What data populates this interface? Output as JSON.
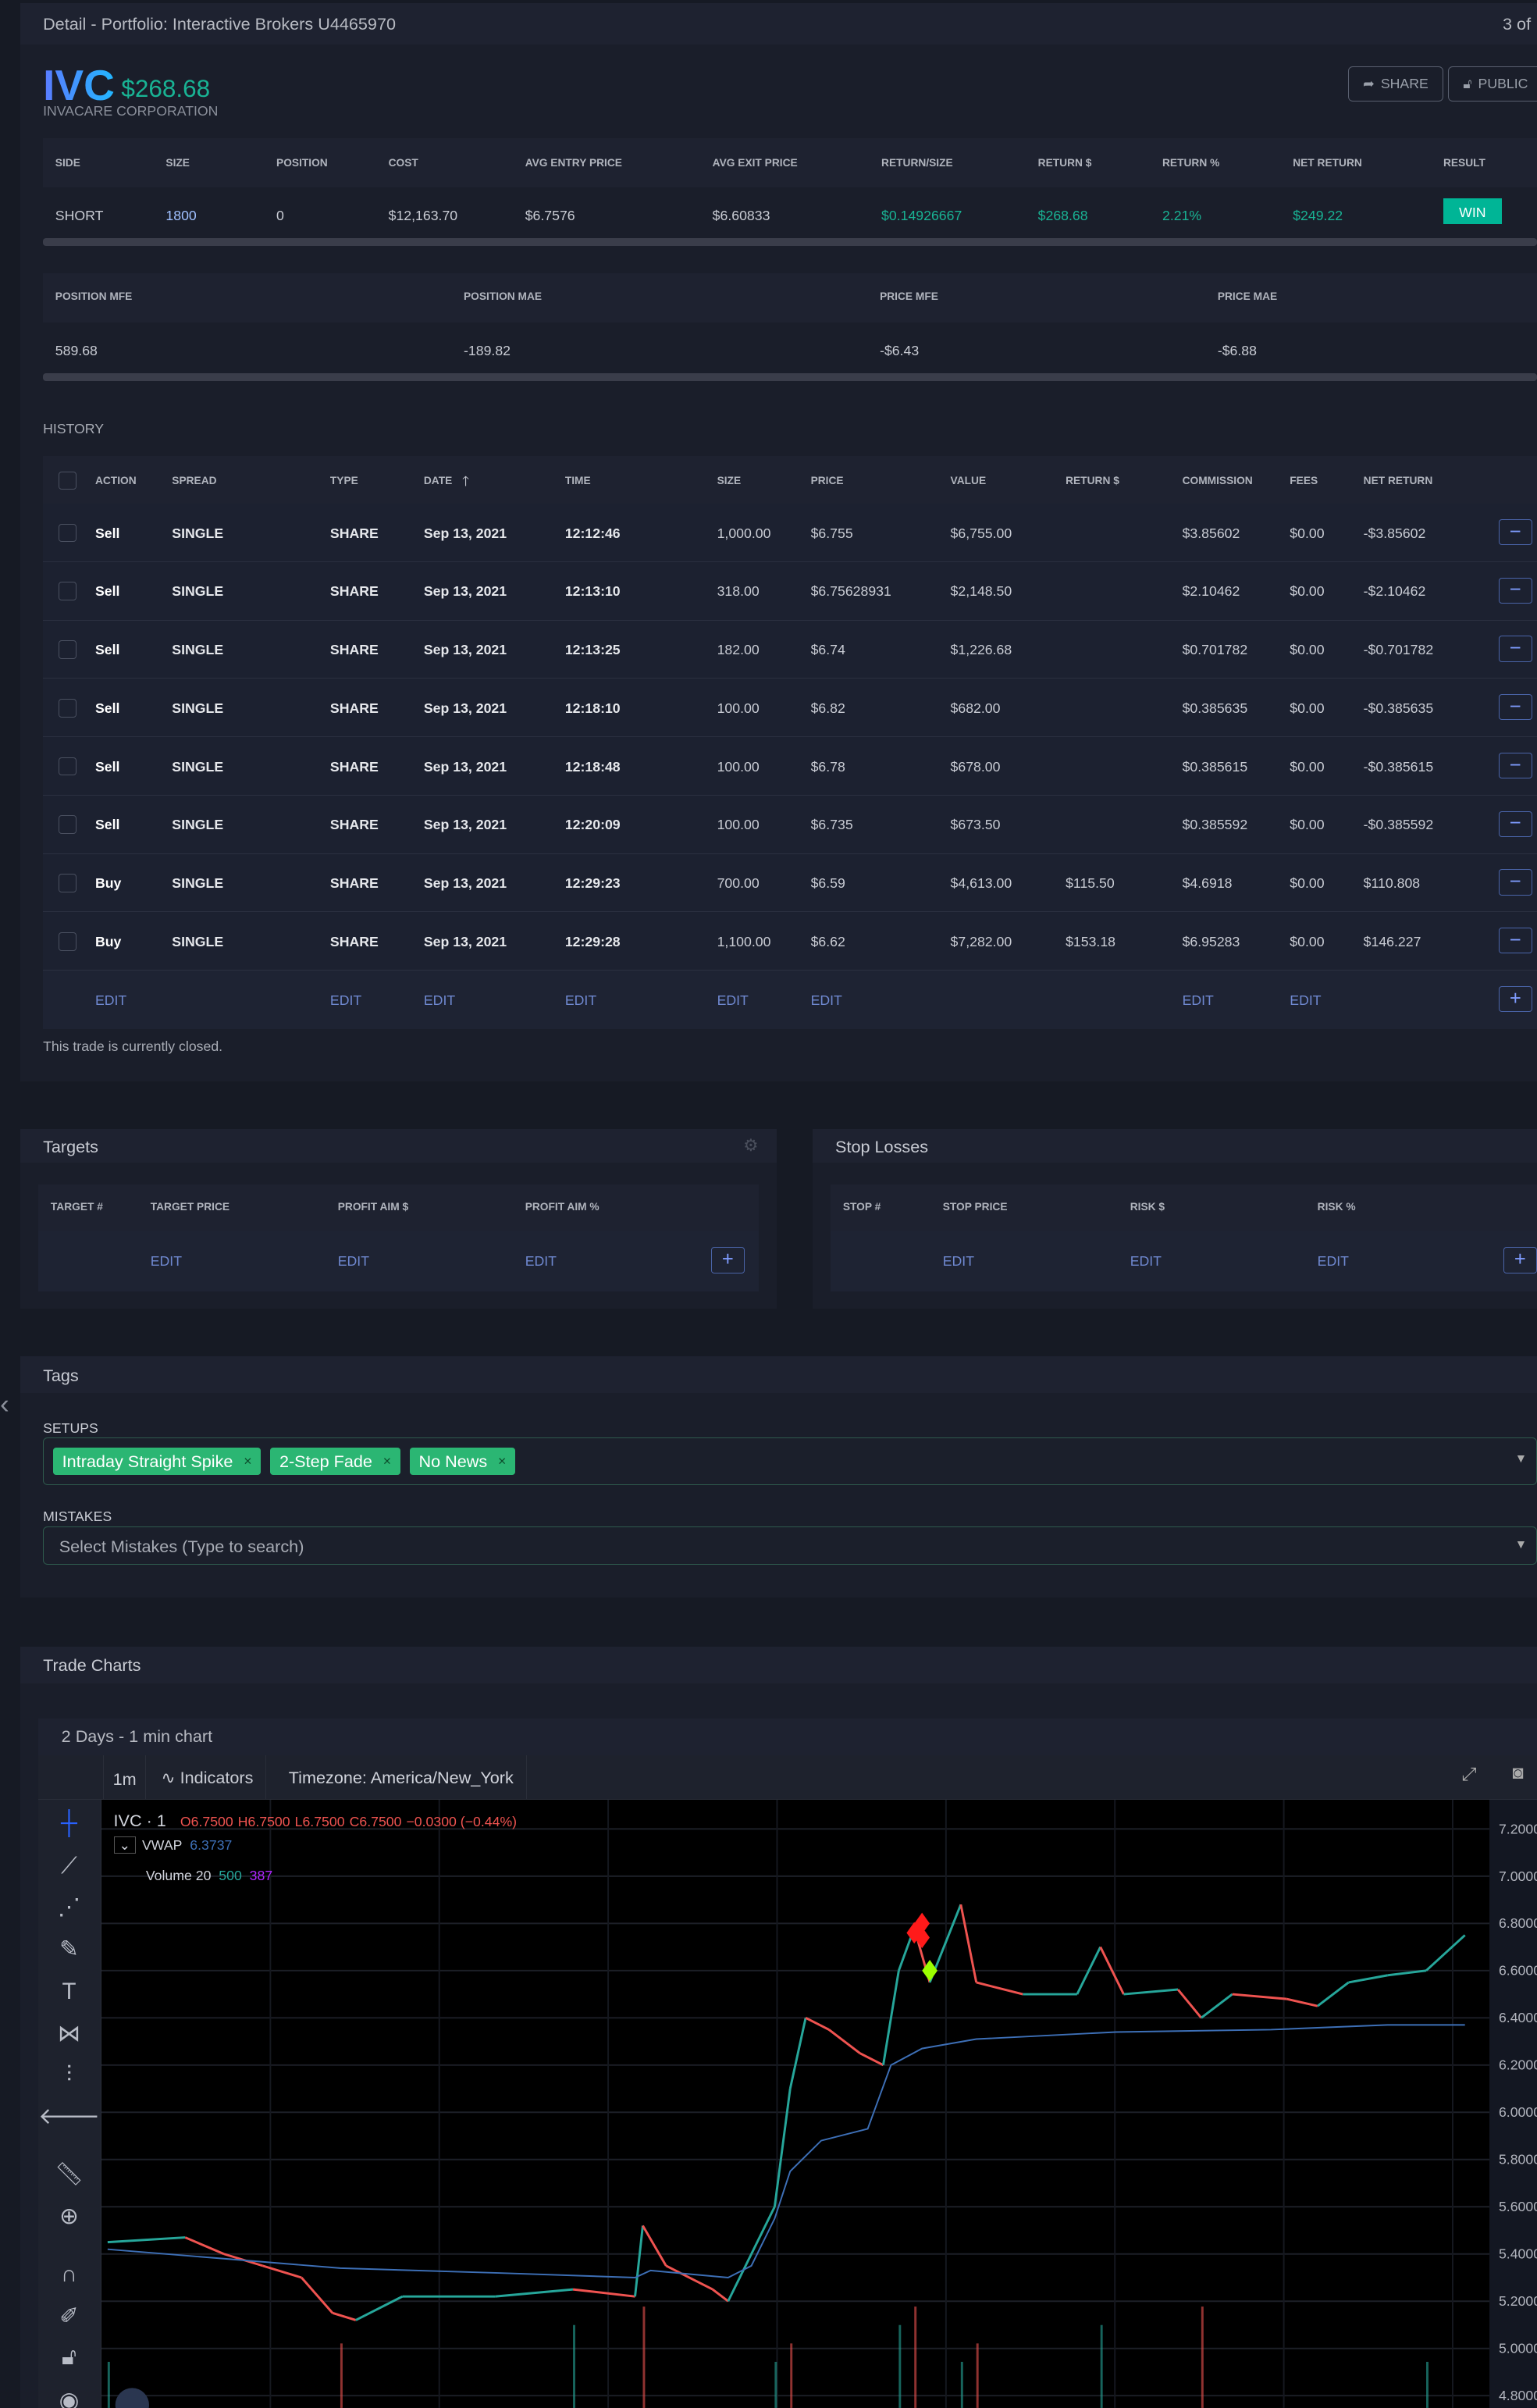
{
  "topbar": {
    "title": "Detail  -  Portfolio: Interactive Brokers U4465970",
    "pager": "3 of"
  },
  "header": {
    "symbol": "IVC",
    "pnl": "$268.68",
    "company": "INVACARE CORPORATION",
    "share_label": "SHARE",
    "public_label": "PUBLIC"
  },
  "summary": {
    "headers": [
      "SIDE",
      "SIZE",
      "POSITION",
      "COST",
      "AVG ENTRY PRICE",
      "AVG EXIT PRICE",
      "RETURN/SIZE",
      "RETURN $",
      "RETURN %",
      "NET RETURN",
      "RESULT"
    ],
    "values": [
      "SHORT",
      "1800",
      "0",
      "$12,163.70",
      "$6.7576",
      "$6.60833",
      "$0.14926667",
      "$268.68",
      "2.21%",
      "$249.22",
      "WIN"
    ]
  },
  "excursion": {
    "headers": [
      "POSITION MFE",
      "POSITION MAE",
      "PRICE MFE",
      "PRICE MAE"
    ],
    "values": [
      "589.68",
      "-189.82",
      "-$6.43",
      "-$6.88"
    ]
  },
  "history": {
    "label": "HISTORY",
    "headers": [
      "ACTION",
      "SPREAD",
      "TYPE",
      "DATE",
      "TIME",
      "SIZE",
      "PRICE",
      "VALUE",
      "RETURN $",
      "COMMISSION",
      "FEES",
      "NET RETURN"
    ],
    "rows": [
      [
        "Sell",
        "SINGLE",
        "SHARE",
        "Sep 13, 2021",
        "12:12:46",
        "1,000.00",
        "$6.755",
        "$6,755.00",
        "",
        "$3.85602",
        "$0.00",
        "-$3.85602"
      ],
      [
        "Sell",
        "SINGLE",
        "SHARE",
        "Sep 13, 2021",
        "12:13:10",
        "318.00",
        "$6.75628931",
        "$2,148.50",
        "",
        "$2.10462",
        "$0.00",
        "-$2.10462"
      ],
      [
        "Sell",
        "SINGLE",
        "SHARE",
        "Sep 13, 2021",
        "12:13:25",
        "182.00",
        "$6.74",
        "$1,226.68",
        "",
        "$0.701782",
        "$0.00",
        "-$0.701782"
      ],
      [
        "Sell",
        "SINGLE",
        "SHARE",
        "Sep 13, 2021",
        "12:18:10",
        "100.00",
        "$6.82",
        "$682.00",
        "",
        "$0.385635",
        "$0.00",
        "-$0.385635"
      ],
      [
        "Sell",
        "SINGLE",
        "SHARE",
        "Sep 13, 2021",
        "12:18:48",
        "100.00",
        "$6.78",
        "$678.00",
        "",
        "$0.385615",
        "$0.00",
        "-$0.385615"
      ],
      [
        "Sell",
        "SINGLE",
        "SHARE",
        "Sep 13, 2021",
        "12:20:09",
        "100.00",
        "$6.735",
        "$673.50",
        "",
        "$0.385592",
        "$0.00",
        "-$0.385592"
      ],
      [
        "Buy",
        "SINGLE",
        "SHARE",
        "Sep 13, 2021",
        "12:29:23",
        "700.00",
        "$6.59",
        "$4,613.00",
        "$115.50",
        "$4.6918",
        "$0.00",
        "$110.808"
      ],
      [
        "Buy",
        "SINGLE",
        "SHARE",
        "Sep 13, 2021",
        "12:29:28",
        "1,100.00",
        "$6.62",
        "$7,282.00",
        "$153.18",
        "$6.95283",
        "$0.00",
        "$146.227"
      ]
    ],
    "edit_label": "EDIT",
    "status": "This trade is currently closed."
  },
  "targets": {
    "title": "Targets",
    "headers": [
      "TARGET #",
      "TARGET PRICE",
      "PROFIT AIM $",
      "PROFIT AIM %"
    ],
    "edit_label": "EDIT"
  },
  "stops": {
    "title": "Stop Losses",
    "headers": [
      "STOP #",
      "STOP PRICE",
      "RISK $",
      "RISK %"
    ],
    "edit_label": "EDIT"
  },
  "tags": {
    "title": "Tags",
    "setups_label": "SETUPS",
    "setups": [
      "Intraday Straight Spike",
      "2-Step Fade",
      "No News"
    ],
    "mistakes_label": "MISTAKES",
    "mistakes_placeholder": "Select Mistakes (Type to search)"
  },
  "charts": {
    "title": "Trade Charts",
    "subtitle": "2 Days  -  1 min  chart",
    "interval": "1m",
    "indicators": "Indicators",
    "timezone": "Timezone: America/New_York",
    "legend": {
      "symbol": "IVC · 1",
      "o": "O6.7500",
      "h": "H6.7500",
      "l": "L6.7500",
      "c": "C6.7500",
      "change": "−0.0300 (−0.44%)",
      "vwap_label": "VWAP",
      "vwap_value": "6.3737",
      "volume_label": "Volume 20",
      "volume_a": "500",
      "volume_b": "387"
    },
    "colors": {
      "up": "#26a69a",
      "down": "#ef5350",
      "vwap": "#3d6fb6",
      "sell_marker": "#ff1a1a",
      "buy_marker": "#9cff00"
    },
    "y_ticks": [
      "7.2000",
      "7.0000",
      "6.8000",
      "6.6000",
      "6.4000",
      "6.2000",
      "6.0000",
      "5.8000",
      "5.6000",
      "5.4000",
      "5.2000",
      "5.0000",
      "4.8000"
    ],
    "chart_data": {
      "type": "line",
      "ylim": [
        4.8,
        7.2
      ],
      "price": [
        [
          0,
          5.45
        ],
        [
          10,
          5.47
        ],
        [
          15,
          5.4
        ],
        [
          20,
          5.35
        ],
        [
          25,
          5.3
        ],
        [
          29,
          5.15
        ],
        [
          32,
          5.12
        ],
        [
          38,
          5.22
        ],
        [
          50,
          5.22
        ],
        [
          60,
          5.25
        ],
        [
          68,
          5.22
        ],
        [
          69,
          5.52
        ],
        [
          72,
          5.35
        ],
        [
          78,
          5.25
        ],
        [
          80,
          5.2
        ],
        [
          83,
          5.4
        ],
        [
          86,
          5.6
        ],
        [
          88,
          6.1
        ],
        [
          90,
          6.4
        ],
        [
          93,
          6.35
        ],
        [
          97,
          6.25
        ],
        [
          100,
          6.2
        ],
        [
          102,
          6.6
        ],
        [
          104,
          6.78
        ],
        [
          106,
          6.55
        ],
        [
          110,
          6.88
        ],
        [
          112,
          6.55
        ],
        [
          118,
          6.5
        ],
        [
          125,
          6.5
        ],
        [
          128,
          6.7
        ],
        [
          131,
          6.5
        ],
        [
          138,
          6.52
        ],
        [
          141,
          6.4
        ],
        [
          145,
          6.5
        ],
        [
          152,
          6.48
        ],
        [
          156,
          6.45
        ],
        [
          160,
          6.55
        ],
        [
          165,
          6.58
        ],
        [
          170,
          6.6
        ],
        [
          175,
          6.75
        ]
      ],
      "vwap": [
        [
          0,
          5.42
        ],
        [
          15,
          5.38
        ],
        [
          30,
          5.34
        ],
        [
          50,
          5.32
        ],
        [
          68,
          5.3
        ],
        [
          70,
          5.33
        ],
        [
          80,
          5.3
        ],
        [
          83,
          5.35
        ],
        [
          86,
          5.55
        ],
        [
          88,
          5.75
        ],
        [
          92,
          5.88
        ],
        [
          98,
          5.93
        ],
        [
          101,
          6.2
        ],
        [
          105,
          6.27
        ],
        [
          112,
          6.31
        ],
        [
          130,
          6.34
        ],
        [
          150,
          6.35
        ],
        [
          165,
          6.37
        ],
        [
          175,
          6.37
        ]
      ],
      "sells": [
        [
          104,
          6.76
        ],
        [
          105,
          6.74
        ],
        [
          105,
          6.8
        ]
      ],
      "buys": [
        [
          106,
          6.6
        ]
      ]
    }
  }
}
